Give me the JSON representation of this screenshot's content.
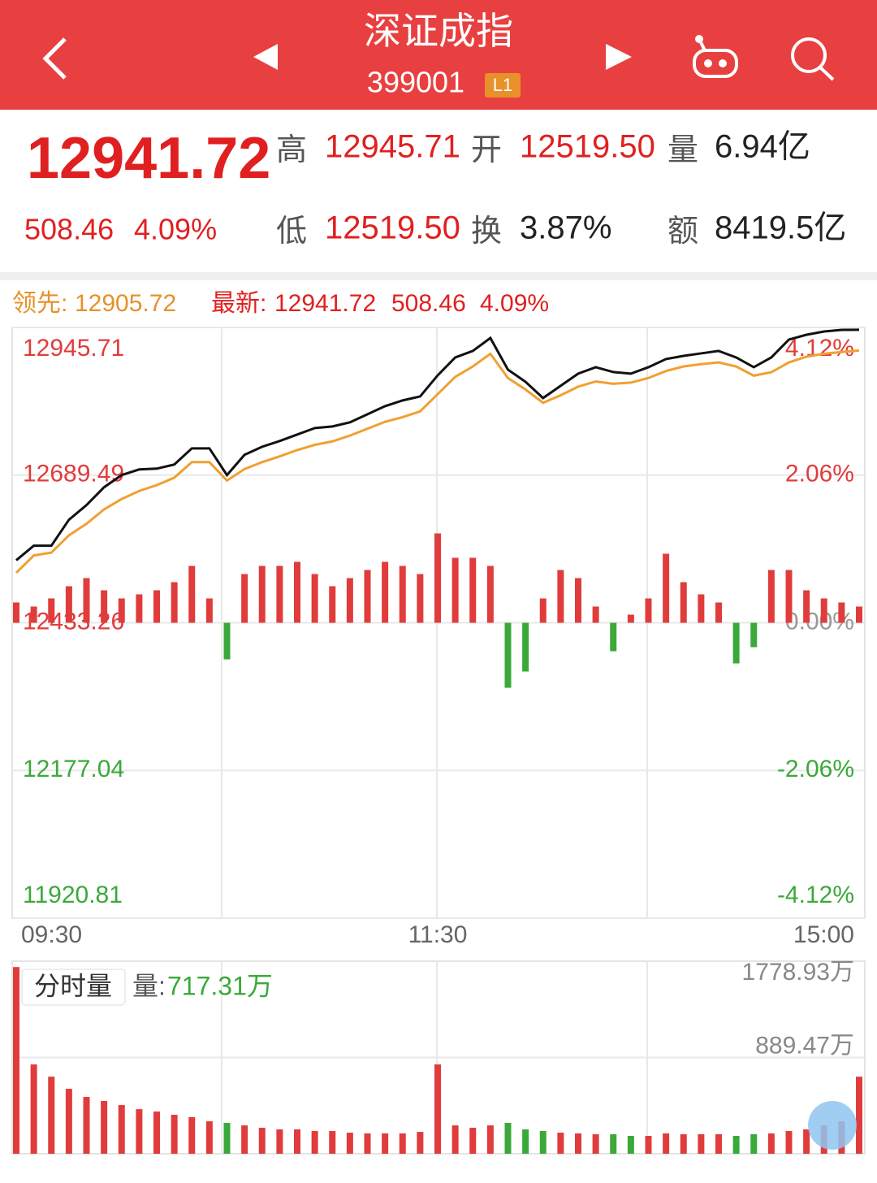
{
  "header": {
    "title": "深证成指",
    "code": "399001",
    "badge": "L1"
  },
  "quote": {
    "price": "12941.72",
    "change": "508.46",
    "change_pct": "4.09%",
    "high_label": "高",
    "high": "12945.71",
    "open_label": "开",
    "open": "12519.50",
    "volume_label": "量",
    "volume": "6.94亿",
    "low_label": "低",
    "low": "12519.50",
    "turnover_label": "换",
    "turnover": "3.87%",
    "amount_label": "额",
    "amount": "8419.5亿"
  },
  "chart_data": [
    {
      "type": "line",
      "legend": [
        {
          "label": "领先:",
          "value": "12905.72"
        },
        {
          "label": "最新:",
          "value": "12941.72",
          "change": "508.46",
          "change_pct": "4.09%"
        }
      ],
      "xlim": [
        0,
        48
      ],
      "xticks": [
        {
          "value": 0,
          "label": "09:30"
        },
        {
          "value": 24,
          "label": "11:30"
        },
        {
          "value": 48,
          "label": "15:00"
        }
      ],
      "ylim": [
        11920.81,
        12945.71
      ],
      "yticks": [
        11920.81,
        12177.04,
        12433.26,
        12689.49,
        12945.71
      ],
      "y2lim": [
        -4.12,
        4.12
      ],
      "y2ticks": [
        {
          "value": -4.12,
          "label": "-4.12%"
        },
        {
          "value": -2.06,
          "label": "-2.06%"
        },
        {
          "value": 0,
          "label": "0.00%"
        },
        {
          "value": 2.06,
          "label": "2.06%"
        },
        {
          "value": 4.12,
          "label": "4.12%"
        }
      ],
      "series": [
        {
          "color": "#111111",
          "values": [
            12541.7,
            12567.0,
            12567.0,
            12612.0,
            12637.4,
            12668.4,
            12689.5,
            12699.3,
            12700.7,
            12707.8,
            12735.9,
            12735.9,
            12689.5,
            12724.7,
            12738.7,
            12748.6,
            12759.9,
            12771.1,
            12773.9,
            12781.0,
            12795.1,
            12809.1,
            12819.0,
            12826.0,
            12862.6,
            12893.6,
            12904.9,
            12927.4,
            12872.5,
            12851.4,
            12823.2,
            12844.4,
            12865.5,
            12876.7,
            12868.3,
            12865.5,
            12876.7,
            12890.8,
            12896.4,
            12900.7,
            12904.9,
            12893.6,
            12876.7,
            12893.6,
            12924.6,
            12933.0,
            12938.7,
            12941.5,
            12941.72
          ]
        },
        {
          "color": "#f0a030",
          "values": [
            12520,
            12550,
            12555,
            12585,
            12605,
            12630,
            12648,
            12662,
            12672,
            12685,
            12712,
            12712,
            12680,
            12700,
            12712,
            12722,
            12733,
            12742,
            12748,
            12758,
            12770,
            12782,
            12790,
            12800,
            12830,
            12860,
            12878,
            12900,
            12858,
            12838,
            12815,
            12828,
            12843,
            12852,
            12848,
            12850,
            12858,
            12870,
            12878,
            12882,
            12885,
            12878,
            12862,
            12868,
            12885,
            12895,
            12900,
            12903,
            12905.72
          ]
        }
      ],
      "bars": {
        "up_color": "#e03c3c",
        "down_color": "#3aa93a",
        "values": [
          25,
          20,
          30,
          45,
          55,
          40,
          30,
          35,
          40,
          50,
          70,
          30,
          -45,
          60,
          70,
          70,
          75,
          60,
          45,
          55,
          65,
          75,
          70,
          60,
          110,
          80,
          80,
          70,
          -80,
          -60,
          30,
          65,
          55,
          20,
          -35,
          10,
          30,
          85,
          50,
          35,
          25,
          -50,
          -30,
          65,
          65,
          40,
          30,
          25,
          20
        ]
      }
    },
    {
      "type": "bar",
      "title": "分时量",
      "subtitle_label": "量:",
      "subtitle_value": "717.31万",
      "ylim": [
        0,
        1778.93
      ],
      "yticks": [
        {
          "value": 889.47,
          "label": "889.47万"
        },
        {
          "value": 1778.93,
          "label": "1778.93万"
        }
      ],
      "up_color": "#e03c3c",
      "down_color": "#3aa93a",
      "values": [
        1725,
        825,
        712,
        600,
        525,
        488,
        450,
        412,
        390,
        360,
        338,
        300,
        285,
        262,
        240,
        225,
        225,
        210,
        210,
        195,
        188,
        188,
        188,
        202,
        825,
        262,
        240,
        262,
        285,
        225,
        210,
        195,
        188,
        180,
        180,
        165,
        165,
        188,
        180,
        180,
        180,
        165,
        180,
        188,
        210,
        225,
        262,
        300,
        712
      ]
    }
  ]
}
